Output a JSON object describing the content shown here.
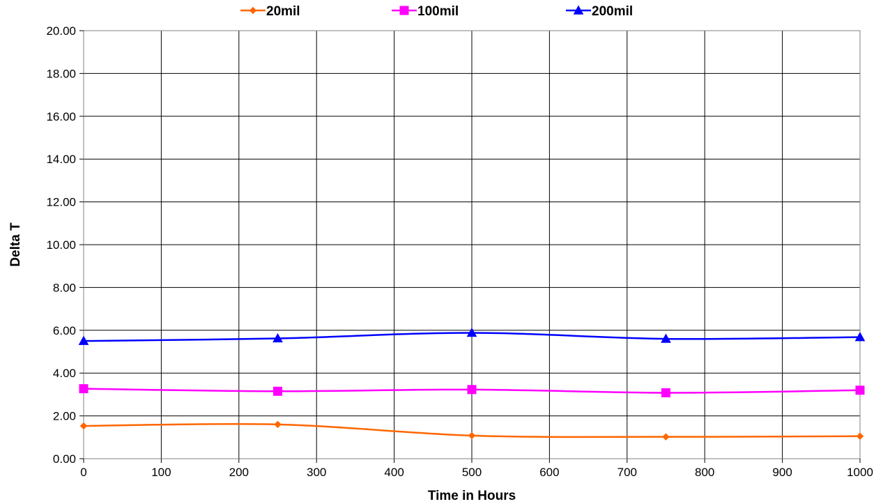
{
  "chart_data": {
    "type": "line",
    "title": "",
    "xlabel": "Time in Hours",
    "ylabel": "Delta T",
    "xlim": [
      0,
      1000
    ],
    "ylim": [
      0,
      20
    ],
    "x_ticks": [
      0,
      100,
      200,
      300,
      400,
      500,
      600,
      700,
      800,
      900,
      1000
    ],
    "y_ticks": [
      "0.00",
      "2.00",
      "4.00",
      "6.00",
      "8.00",
      "10.00",
      "12.00",
      "14.00",
      "16.00",
      "18.00",
      "20.00"
    ],
    "grid": true,
    "legend_position": "top",
    "smooth": true,
    "x": [
      0,
      250,
      500,
      750,
      1000
    ],
    "series": [
      {
        "name": "20mil",
        "values": [
          1.53,
          1.6,
          1.08,
          1.02,
          1.05
        ],
        "color": "#FF6600",
        "marker": "diamond"
      },
      {
        "name": "100mil",
        "values": [
          3.27,
          3.15,
          3.23,
          3.08,
          3.2
        ],
        "color": "#FF00FF",
        "marker": "square"
      },
      {
        "name": "200mil",
        "values": [
          5.5,
          5.62,
          5.88,
          5.6,
          5.68
        ],
        "color": "#0000FF",
        "marker": "triangle"
      }
    ]
  }
}
